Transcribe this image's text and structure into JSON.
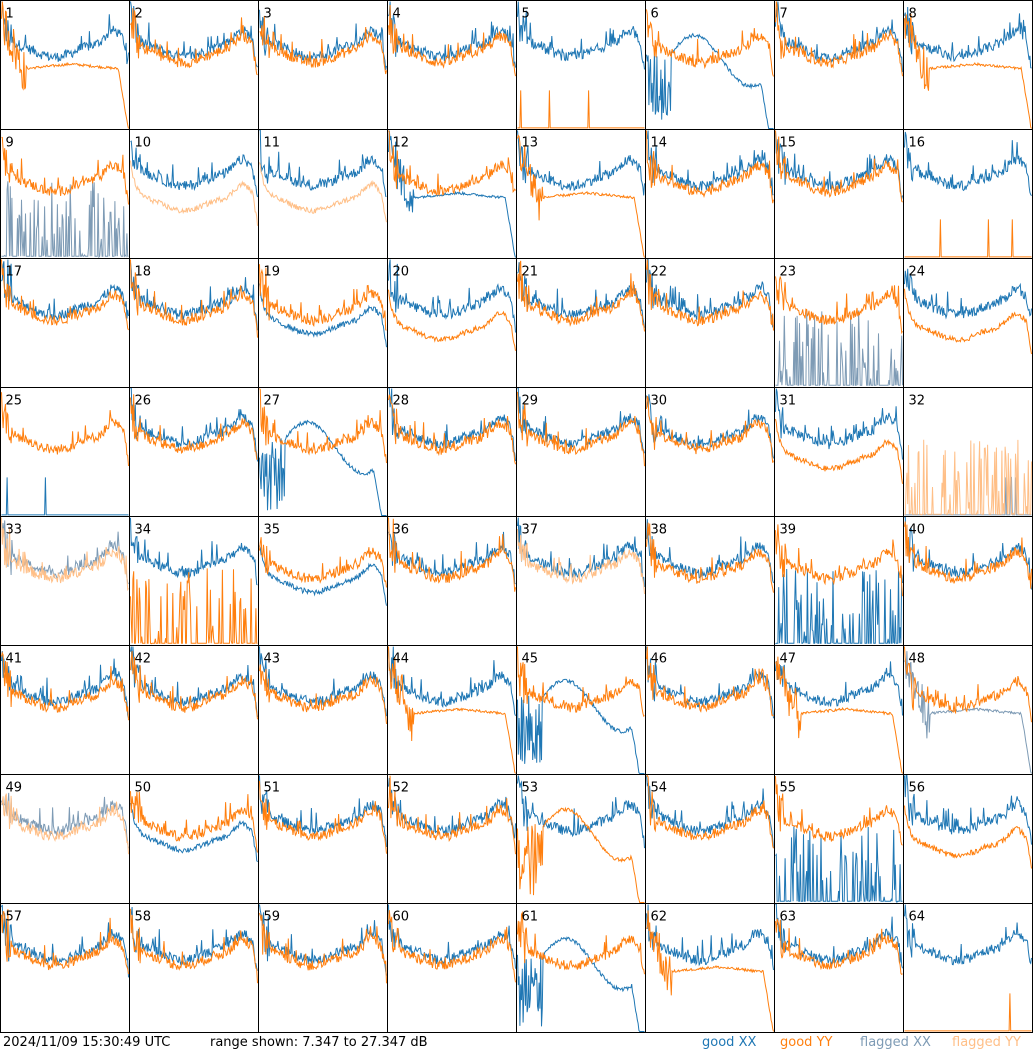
{
  "timestamp": "2024/11/09 15:30:49 UTC",
  "range_text": "range shown: 7.347 to 27.347 dB",
  "legend": {
    "good_word": "good",
    "flagged_word": "flagged",
    "xx": "XX",
    "yy": "YY"
  },
  "colors": {
    "good_xx": "#1f77b4",
    "good_yy": "#ff7f0e",
    "flagged_xx": "#7e9bb5",
    "flagged_yy": "#ffbf87",
    "grid": "#000000"
  },
  "chart_data": {
    "type": "line",
    "layout": "8x8 grid of per-antenna spectra",
    "ylim": [
      7.347,
      27.347
    ],
    "yunit": "dB",
    "n_channels": 160,
    "panels": [
      {
        "label": "1",
        "xx": "bandpass",
        "yy": "droop",
        "flag": ""
      },
      {
        "label": "2",
        "xx": "bandpass",
        "yy": "bandpass",
        "flag": ""
      },
      {
        "label": "3",
        "xx": "bandpass",
        "yy": "bandpass",
        "flag": ""
      },
      {
        "label": "4",
        "xx": "bandpass",
        "yy": "bandpass",
        "flag": ""
      },
      {
        "label": "5",
        "xx": "bandpass",
        "yy": "dead",
        "flag": ""
      },
      {
        "label": "6",
        "xx": "wave",
        "yy": "bandpass",
        "flag": ""
      },
      {
        "label": "7",
        "xx": "bandpass",
        "yy": "bandpass",
        "flag": ""
      },
      {
        "label": "8",
        "xx": "bandpass",
        "yy": "droop",
        "flag": ""
      },
      {
        "label": "9",
        "xx": "spiky",
        "yy": "bandpass",
        "flag": "xx"
      },
      {
        "label": "10",
        "xx": "bandpass",
        "yy": "lowmid",
        "flag": "yy"
      },
      {
        "label": "11",
        "xx": "bandpass",
        "yy": "lowmid",
        "flag": "yy"
      },
      {
        "label": "12",
        "xx": "droop",
        "yy": "bandpass",
        "flag": ""
      },
      {
        "label": "13",
        "xx": "bandpass",
        "yy": "droop",
        "flag": ""
      },
      {
        "label": "14",
        "xx": "bandpass",
        "yy": "bandpass",
        "flag": ""
      },
      {
        "label": "15",
        "xx": "bandpass",
        "yy": "bandpass",
        "flag": ""
      },
      {
        "label": "16",
        "xx": "bandpass",
        "yy": "dead",
        "flag": ""
      },
      {
        "label": "17",
        "xx": "bandpass",
        "yy": "bandpass",
        "flag": ""
      },
      {
        "label": "18",
        "xx": "bandpass",
        "yy": "bandpass",
        "flag": ""
      },
      {
        "label": "19",
        "xx": "lowmid",
        "yy": "bandpass",
        "flag": ""
      },
      {
        "label": "20",
        "xx": "bandpass",
        "yy": "lowmid",
        "flag": ""
      },
      {
        "label": "21",
        "xx": "bandpass",
        "yy": "bandpass",
        "flag": ""
      },
      {
        "label": "22",
        "xx": "bandpass",
        "yy": "bandpass",
        "flag": ""
      },
      {
        "label": "23",
        "xx": "spiky",
        "yy": "bandpass",
        "flag": "xx"
      },
      {
        "label": "24",
        "xx": "bandpass",
        "yy": "lowmid",
        "flag": ""
      },
      {
        "label": "25",
        "xx": "dead",
        "yy": "bandpass",
        "flag": ""
      },
      {
        "label": "26",
        "xx": "bandpass",
        "yy": "bandpass",
        "flag": ""
      },
      {
        "label": "27",
        "xx": "wave",
        "yy": "bandpass",
        "flag": ""
      },
      {
        "label": "28",
        "xx": "bandpass",
        "yy": "bandpass",
        "flag": ""
      },
      {
        "label": "29",
        "xx": "bandpass",
        "yy": "bandpass",
        "flag": ""
      },
      {
        "label": "30",
        "xx": "bandpass",
        "yy": "bandpass",
        "flag": ""
      },
      {
        "label": "31",
        "xx": "bandpass",
        "yy": "lowmid",
        "flag": ""
      },
      {
        "label": "32",
        "xx": "dead",
        "yy": "spiky",
        "flag": "both"
      },
      {
        "label": "33",
        "xx": "bandpass",
        "yy": "bandpass",
        "flag": "both"
      },
      {
        "label": "34",
        "xx": "bandpass",
        "yy": "spiky",
        "flag": ""
      },
      {
        "label": "35",
        "xx": "lowmid",
        "yy": "bandpass",
        "flag": ""
      },
      {
        "label": "36",
        "xx": "bandpass",
        "yy": "bandpass",
        "flag": ""
      },
      {
        "label": "37",
        "xx": "bandpass",
        "yy": "bandpass",
        "flag": "yy"
      },
      {
        "label": "38",
        "xx": "bandpass",
        "yy": "bandpass",
        "flag": ""
      },
      {
        "label": "39",
        "xx": "spiky",
        "yy": "bandpass",
        "flag": ""
      },
      {
        "label": "40",
        "xx": "bandpass",
        "yy": "bandpass",
        "flag": ""
      },
      {
        "label": "41",
        "xx": "bandpass",
        "yy": "bandpass",
        "flag": ""
      },
      {
        "label": "42",
        "xx": "bandpass",
        "yy": "bandpass",
        "flag": ""
      },
      {
        "label": "43",
        "xx": "bandpass",
        "yy": "bandpass",
        "flag": ""
      },
      {
        "label": "44",
        "xx": "bandpass",
        "yy": "droop",
        "flag": ""
      },
      {
        "label": "45",
        "xx": "wave",
        "yy": "bandpass",
        "flag": ""
      },
      {
        "label": "46",
        "xx": "bandpass",
        "yy": "bandpass",
        "flag": ""
      },
      {
        "label": "47",
        "xx": "bandpass",
        "yy": "droop",
        "flag": ""
      },
      {
        "label": "48",
        "xx": "droop",
        "yy": "bandpass",
        "flag": "xx"
      },
      {
        "label": "49",
        "xx": "bandpass",
        "yy": "bandpass",
        "flag": "both"
      },
      {
        "label": "50",
        "xx": "lowmid",
        "yy": "bandpass",
        "flag": ""
      },
      {
        "label": "51",
        "xx": "bandpass",
        "yy": "bandpass",
        "flag": ""
      },
      {
        "label": "52",
        "xx": "bandpass",
        "yy": "bandpass",
        "flag": ""
      },
      {
        "label": "53",
        "xx": "bandpass",
        "yy": "wave",
        "flag": ""
      },
      {
        "label": "54",
        "xx": "bandpass",
        "yy": "bandpass",
        "flag": ""
      },
      {
        "label": "55",
        "xx": "spiky",
        "yy": "bandpass",
        "flag": ""
      },
      {
        "label": "56",
        "xx": "bandpass",
        "yy": "lowmid",
        "flag": ""
      },
      {
        "label": "57",
        "xx": "bandpass",
        "yy": "bandpass",
        "flag": ""
      },
      {
        "label": "58",
        "xx": "bandpass",
        "yy": "bandpass",
        "flag": ""
      },
      {
        "label": "59",
        "xx": "bandpass",
        "yy": "bandpass",
        "flag": ""
      },
      {
        "label": "60",
        "xx": "bandpass",
        "yy": "bandpass",
        "flag": ""
      },
      {
        "label": "61",
        "xx": "wave",
        "yy": "bandpass",
        "flag": ""
      },
      {
        "label": "62",
        "xx": "bandpass",
        "yy": "droop",
        "flag": ""
      },
      {
        "label": "63",
        "xx": "bandpass",
        "yy": "bandpass",
        "flag": ""
      },
      {
        "label": "64",
        "xx": "bandpass",
        "yy": "dead",
        "flag": ""
      }
    ]
  }
}
